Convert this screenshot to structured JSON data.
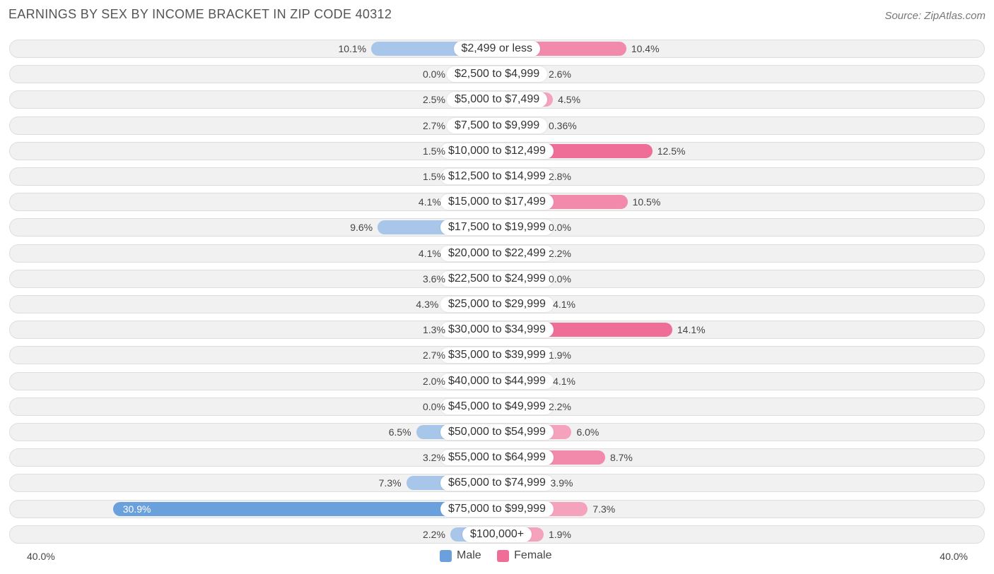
{
  "chart_data": {
    "type": "bar",
    "orientation": "horizontal-diverging",
    "title": "EARNINGS BY SEX BY INCOME BRACKET IN ZIP CODE 40312",
    "source": "Source: ZipAtlas.com",
    "categories": [
      "$2,499 or less",
      "$2,500 to $4,999",
      "$5,000 to $7,499",
      "$7,500 to $9,999",
      "$10,000 to $12,499",
      "$12,500 to $14,999",
      "$15,000 to $17,499",
      "$17,500 to $19,999",
      "$20,000 to $22,499",
      "$22,500 to $24,999",
      "$25,000 to $29,999",
      "$30,000 to $34,999",
      "$35,000 to $39,999",
      "$40,000 to $44,999",
      "$45,000 to $49,999",
      "$50,000 to $54,999",
      "$55,000 to $64,999",
      "$65,000 to $74,999",
      "$75,000 to $99,999",
      "$100,000+"
    ],
    "series": [
      {
        "name": "Male",
        "color": "#6aa0dc",
        "values": [
          10.1,
          0.0,
          2.5,
          2.7,
          1.5,
          1.5,
          4.1,
          9.6,
          4.1,
          3.6,
          4.3,
          1.3,
          2.7,
          2.0,
          0.0,
          6.5,
          3.2,
          7.3,
          30.9,
          2.2
        ],
        "labels": [
          "10.1%",
          "0.0%",
          "2.5%",
          "2.7%",
          "1.5%",
          "1.5%",
          "4.1%",
          "9.6%",
          "4.1%",
          "3.6%",
          "4.3%",
          "1.3%",
          "2.7%",
          "2.0%",
          "0.0%",
          "6.5%",
          "3.2%",
          "7.3%",
          "30.9%",
          "2.2%"
        ]
      },
      {
        "name": "Female",
        "color": "#ef6e97",
        "values": [
          10.4,
          2.6,
          4.5,
          0.36,
          12.5,
          2.8,
          10.5,
          0.0,
          2.2,
          0.0,
          4.1,
          14.1,
          1.9,
          4.1,
          2.2,
          6.0,
          8.7,
          3.9,
          7.3,
          1.9
        ],
        "labels": [
          "10.4%",
          "2.6%",
          "4.5%",
          "0.36%",
          "12.5%",
          "2.8%",
          "10.5%",
          "0.0%",
          "2.2%",
          "0.0%",
          "4.1%",
          "14.1%",
          "1.9%",
          "4.1%",
          "2.2%",
          "6.0%",
          "8.7%",
          "3.9%",
          "7.3%",
          "1.9%"
        ]
      }
    ],
    "xlim": [
      -40,
      40
    ],
    "axis_labels": {
      "left": "40.0%",
      "right": "40.0%"
    },
    "legend": {
      "position": "bottom-center",
      "items": [
        {
          "label": "Male",
          "color": "#6aa0dc"
        },
        {
          "label": "Female",
          "color": "#ef6e97"
        }
      ]
    }
  }
}
